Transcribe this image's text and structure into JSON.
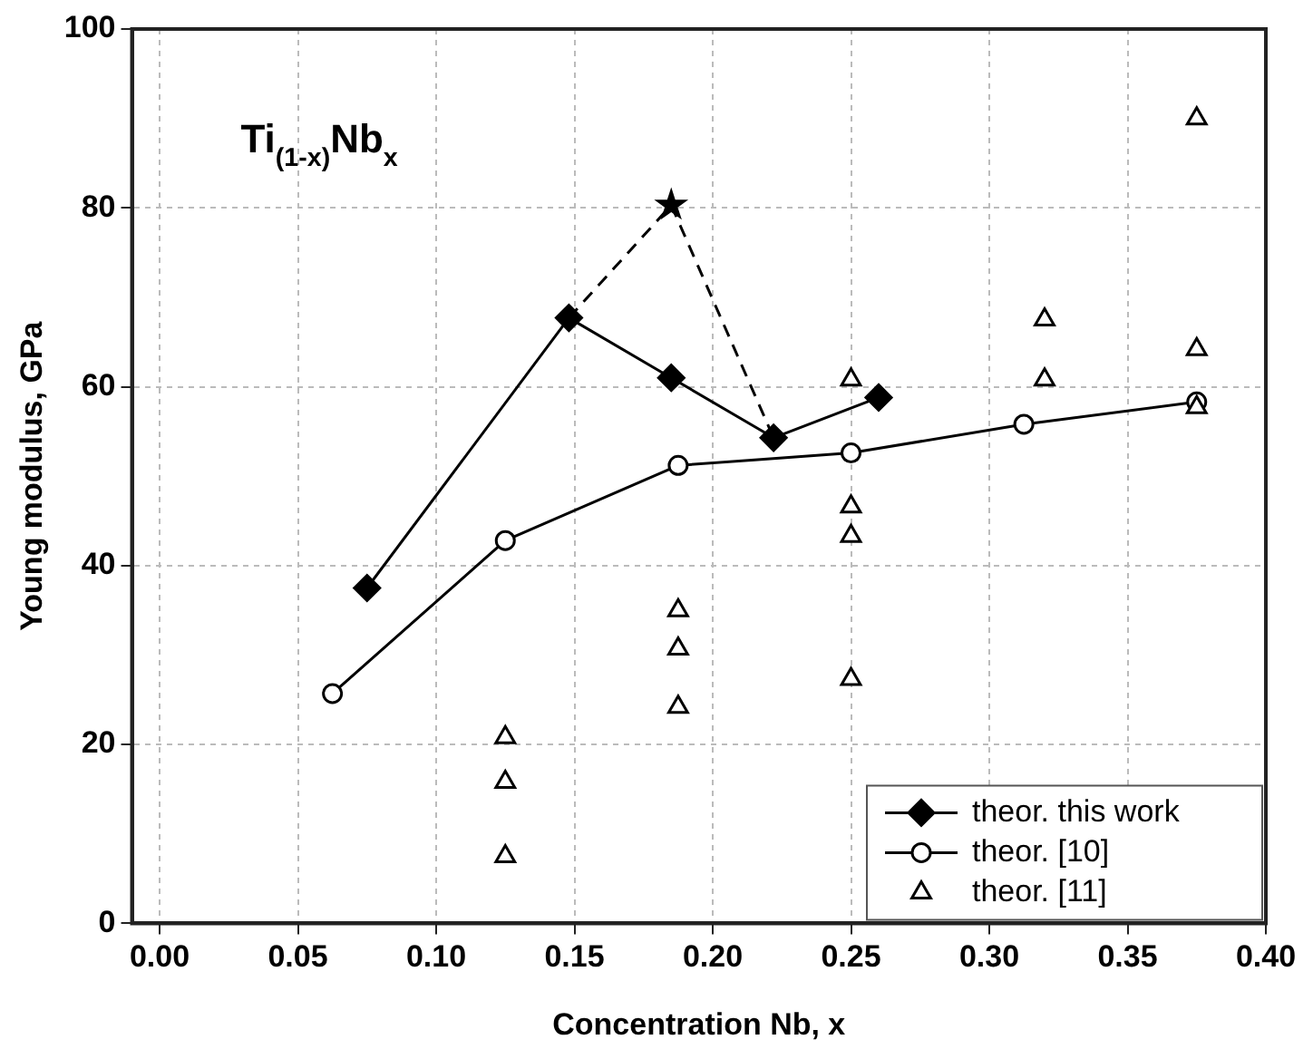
{
  "chart_data": {
    "type": "line",
    "xlabel": "Concentration Nb, x",
    "ylabel": "Young modulus, GPa",
    "annotations": [
      "Ti$_{(1-x)}$Nb$_{x}$"
    ],
    "xlim": [
      -0.01,
      0.4
    ],
    "ylim": [
      0,
      100
    ],
    "xticks": [
      {
        "value": 0,
        "label": "0.00"
      },
      {
        "value": 0.05,
        "label": "0.05"
      },
      {
        "value": 0.1,
        "label": "0.10"
      },
      {
        "value": 0.15,
        "label": "0.15"
      },
      {
        "value": 0.2,
        "label": "0.20"
      },
      {
        "value": 0.25,
        "label": "0.25"
      },
      {
        "value": 0.3,
        "label": "0.30"
      },
      {
        "value": 0.35,
        "label": "0.35"
      },
      {
        "value": 0.4,
        "label": "0.40"
      }
    ],
    "yticks": [
      0,
      20,
      40,
      60,
      80,
      100
    ],
    "grid": true,
    "legend": "bottom right",
    "series": [
      {
        "line_style": "dashed",
        "color": "#000000",
        "x": [
          0.148,
          0.185,
          0.222
        ],
        "values": [
          67.7,
          80.3,
          54.3
        ]
      },
      {
        "type": "scatter",
        "marker": "star",
        "color": "#000000",
        "x": [
          0.185
        ],
        "values": [
          80.3
        ]
      },
      {
        "name": "theor. this work",
        "marker": "diamond",
        "line_style": "solid",
        "color": "#000000",
        "x": [
          0.075,
          0.148,
          0.185,
          0.222,
          0.26
        ],
        "values": [
          37.5,
          67.7,
          61,
          54.3,
          58.8
        ]
      },
      {
        "name": "theor. [10]",
        "marker": "circle",
        "line_style": "solid",
        "color": "#000000",
        "x": [
          0.0625,
          0.125,
          0.1875,
          0.25,
          0.3125,
          0.375
        ],
        "values": [
          25.7,
          42.8,
          51.2,
          52.6,
          55.8,
          58.3
        ]
      },
      {
        "name": "theor. [11]",
        "type": "scatter",
        "marker": "triangle",
        "color": "#000000",
        "x": [
          0.125,
          0.125,
          0.125,
          0.1875,
          0.1875,
          0.1875,
          0.25,
          0.25,
          0.25,
          0.25,
          0.32,
          0.32,
          0.375,
          0.375,
          0.375
        ],
        "values": [
          20.8,
          15.8,
          7.5,
          35,
          30.7,
          24.2,
          60.8,
          46.6,
          43.3,
          27.3,
          67.5,
          60.8,
          90,
          64.2,
          57.7
        ]
      }
    ]
  }
}
